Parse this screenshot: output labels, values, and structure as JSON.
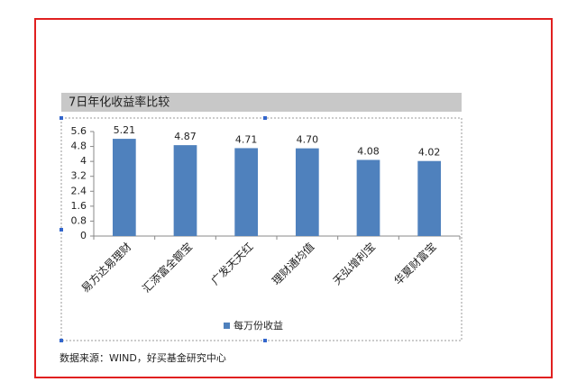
{
  "chart_data": {
    "type": "bar",
    "title": "7日年化收益率比较",
    "categories": [
      "易方达易理财",
      "汇添富全额宝",
      "广发天天红",
      "理财通均值",
      "天弘增利宝",
      "华夏财富宝"
    ],
    "series": [
      {
        "name": "每万份收益",
        "color": "#4f81bd",
        "values": [
          5.21,
          4.87,
          4.71,
          4.7,
          4.08,
          4.02
        ],
        "value_labels": [
          "5.21",
          "4.87",
          "4.71",
          "4.70",
          "4.08",
          "4.02"
        ]
      }
    ],
    "ylim": [
      0,
      5.6
    ],
    "yticks": [
      0,
      0.8,
      1.6,
      2.4,
      3.2,
      4,
      4.8,
      5.6
    ],
    "legend": "bottom",
    "source": "数据来源：WIND，好买基金研究中心"
  }
}
